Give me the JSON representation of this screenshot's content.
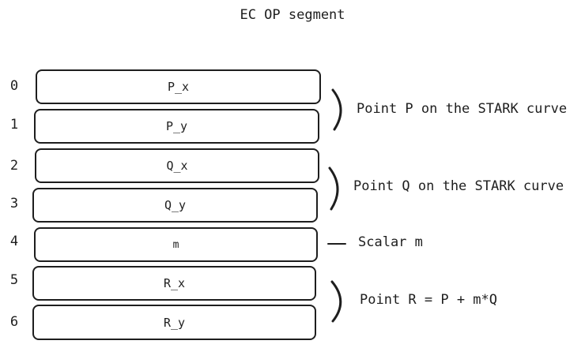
{
  "diagram": {
    "title": "EC OP segment",
    "rows": [
      {
        "index": "0",
        "label": "P_x"
      },
      {
        "index": "1",
        "label": "P_y"
      },
      {
        "index": "2",
        "label": "Q_x"
      },
      {
        "index": "3",
        "label": "Q_y"
      },
      {
        "index": "4",
        "label": "m"
      },
      {
        "index": "5",
        "label": "R_x"
      },
      {
        "index": "6",
        "label": "R_y"
      }
    ],
    "annotations": [
      {
        "text": "Point P on the STARK curve"
      },
      {
        "text": "Point Q on the STARK curve"
      },
      {
        "text": "Scalar m"
      },
      {
        "text": "Point R = P + m*Q"
      }
    ]
  }
}
